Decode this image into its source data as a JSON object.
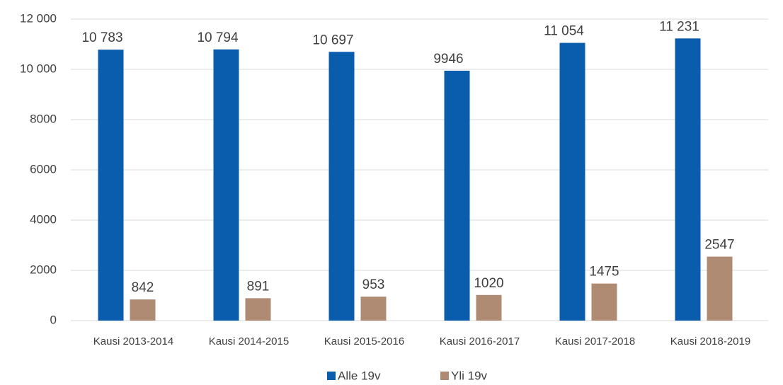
{
  "chart_data": {
    "type": "bar",
    "categories": [
      "Kausi 2013-2014",
      "Kausi 2014-2015",
      "Kausi 2015-2016",
      "Kausi 2016-2017",
      "Kausi 2017-2018",
      "Kausi 2018-2019"
    ],
    "series": [
      {
        "name": "Alle 19v",
        "color": "#0a5cad",
        "values": [
          10783,
          10794,
          10697,
          9946,
          11054,
          11231
        ],
        "value_labels": [
          "10 783",
          "10 794",
          "10 697",
          "9946",
          "11 054",
          "11 231"
        ]
      },
      {
        "name": "Yli 19v",
        "color": "#b08b74",
        "values": [
          842,
          891,
          953,
          1020,
          1475,
          2547
        ]
      }
    ],
    "ylim": [
      0,
      12000
    ],
    "yticks": [
      0,
      2000,
      4000,
      6000,
      8000,
      {
        "value": 10000,
        "label": "10 000"
      },
      {
        "value": 12000,
        "label": "12 000"
      }
    ],
    "grid": true,
    "legend": "bottom"
  }
}
